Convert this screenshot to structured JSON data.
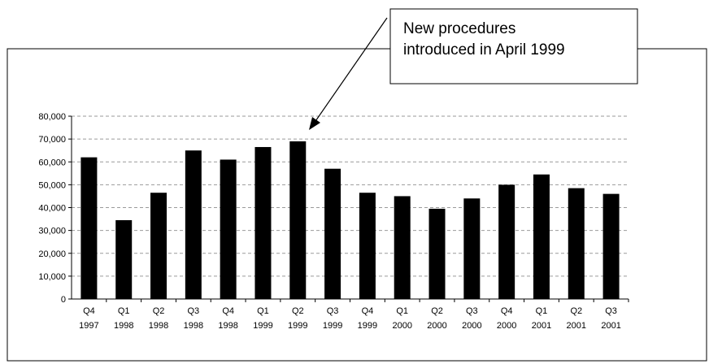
{
  "chart_data": {
    "type": "bar",
    "categories": [
      [
        "Q4",
        "1997"
      ],
      [
        "Q1",
        "1998"
      ],
      [
        "Q2",
        "1998"
      ],
      [
        "Q3",
        "1998"
      ],
      [
        "Q4",
        "1998"
      ],
      [
        "Q1",
        "1999"
      ],
      [
        "Q2",
        "1999"
      ],
      [
        "Q3",
        "1999"
      ],
      [
        "Q4",
        "1999"
      ],
      [
        "Q1",
        "2000"
      ],
      [
        "Q2",
        "2000"
      ],
      [
        "Q3",
        "2000"
      ],
      [
        "Q4",
        "2000"
      ],
      [
        "Q1",
        "2001"
      ],
      [
        "Q2",
        "2001"
      ],
      [
        "Q3",
        "2001"
      ]
    ],
    "values": [
      62000,
      34500,
      46500,
      65000,
      61000,
      66500,
      69000,
      57000,
      46500,
      45000,
      39500,
      44000,
      50000,
      54500,
      48500,
      46000
    ],
    "ylim": [
      0,
      80000
    ],
    "yticks": [
      0,
      10000,
      20000,
      30000,
      40000,
      50000,
      60000,
      70000,
      80000
    ],
    "ytick_labels": [
      "0",
      "10,000",
      "20,000",
      "30,000",
      "40,000",
      "50,000",
      "60,000",
      "70,000",
      "80,000"
    ],
    "bar_color": "#000000",
    "grid": "horizontal dashed",
    "annotation": {
      "lines": [
        "New procedures",
        "introduced in April 1999"
      ],
      "points_to": "Q2 1999"
    }
  }
}
